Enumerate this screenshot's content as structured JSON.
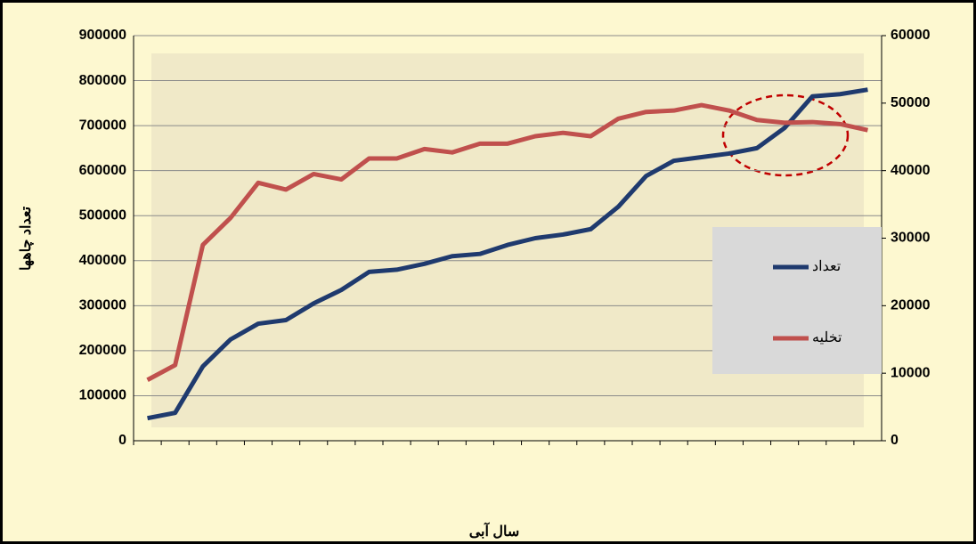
{
  "chart_data": {
    "type": "line",
    "y_label": "تعداد چاهها",
    "x_label": "سال آبی",
    "categories": [
      null,
      null,
      null,
      null,
      null,
      null,
      null,
      null,
      null,
      null,
      null,
      null,
      null,
      null,
      null,
      null,
      null,
      null,
      null,
      null,
      null,
      null,
      null,
      null,
      null,
      null,
      null
    ],
    "series": [
      {
        "name": "تعداد",
        "color": "#1f3a6e",
        "values": [
          50000,
          62000,
          165000,
          225000,
          260000,
          268000,
          305000,
          335000,
          375000,
          380000,
          393000,
          410000,
          415000,
          435000,
          450000,
          458000,
          470000,
          520000,
          588000,
          622000,
          630000,
          638000,
          650000,
          695000,
          765000,
          770000,
          780000
        ]
      },
      {
        "name": "تخلیه",
        "color": "#c0504d",
        "axis": "y2",
        "values": [
          9000,
          11200,
          29000,
          33000,
          38200,
          37200,
          39500,
          38700,
          41800,
          41800,
          43200,
          42700,
          44000,
          44000,
          45100,
          45600,
          45100,
          47700,
          48700,
          48900,
          49700,
          48900,
          47500,
          47100,
          47200,
          46900,
          46000
        ]
      }
    ],
    "ylim": [
      0,
      900000
    ],
    "yticks": [
      0,
      100000,
      200000,
      300000,
      400000,
      500000,
      600000,
      700000,
      800000,
      900000
    ],
    "y2lim": [
      0,
      60000
    ],
    "y2ticks": [
      0,
      10000,
      20000,
      30000,
      40000,
      50000,
      60000
    ],
    "grid": true
  }
}
